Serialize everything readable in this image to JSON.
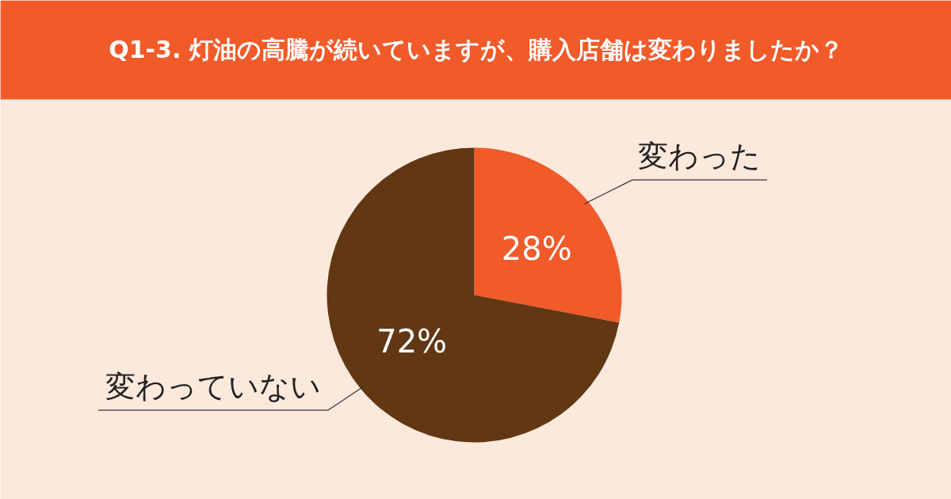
{
  "chart_data": {
    "type": "pie",
    "title": "Q1-3. 灯油の高騰が続いていますが、購入店舗は変わりましたか？",
    "categories": [
      "変わった",
      "変わっていない"
    ],
    "values": [
      28,
      72
    ],
    "colors": [
      "#f15a29",
      "#613714"
    ],
    "value_labels": [
      "28%",
      "72%"
    ]
  }
}
